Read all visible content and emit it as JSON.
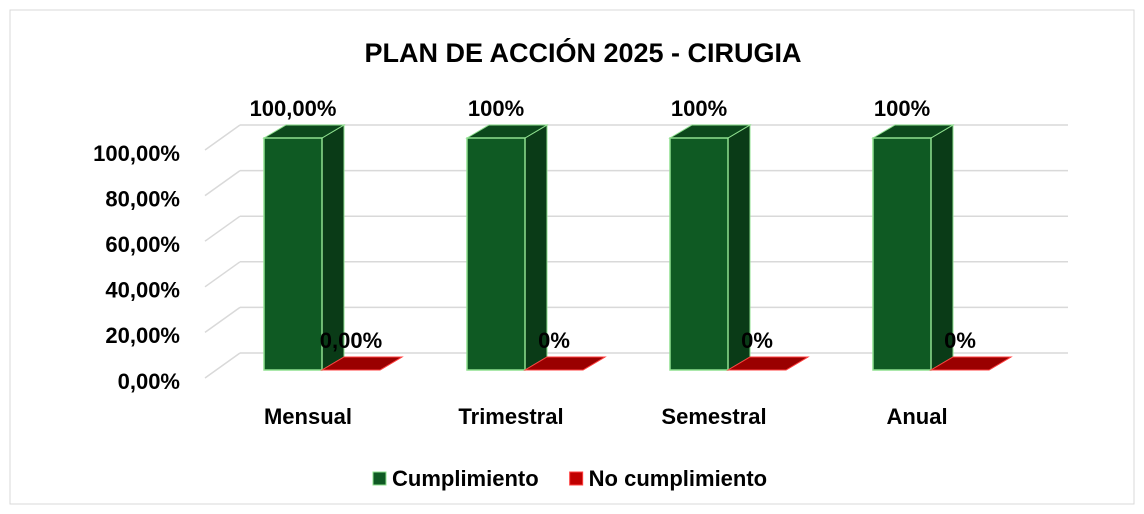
{
  "chart_data": {
    "type": "bar3d",
    "title": "PLAN DE ACCIÓN 2025 - CIRUGIA",
    "categories": [
      "Mensual",
      "Trimestral",
      "Semestral",
      "Anual"
    ],
    "series": [
      {
        "name": "Cumplimiento",
        "color": "#0f5a23",
        "values": [
          100,
          100,
          100,
          100
        ],
        "value_labels": [
          "100,00%",
          "100%",
          "100%",
          "100%"
        ]
      },
      {
        "name": "No cumplimiento",
        "color": "#c00000",
        "values": [
          0,
          0,
          0,
          0
        ],
        "value_labels": [
          "0,00%",
          "0%",
          "0%",
          "0%"
        ]
      }
    ],
    "ylim": [
      0,
      100
    ],
    "yticks": [
      {
        "value": 0,
        "label": "0,00%"
      },
      {
        "value": 20,
        "label": "20,00%"
      },
      {
        "value": 40,
        "label": "40,00%"
      },
      {
        "value": 60,
        "label": "60,00%"
      },
      {
        "value": 80,
        "label": "80,00%"
      },
      {
        "value": 100,
        "label": "100,00%"
      }
    ],
    "grid": true,
    "legend": "bottom"
  }
}
